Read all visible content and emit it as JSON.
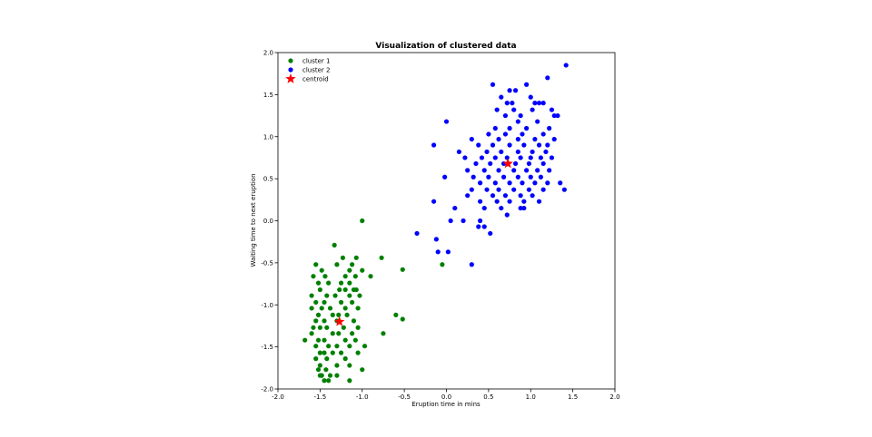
{
  "chart_data": {
    "type": "scatter",
    "title": "Visualization of clustered data",
    "xlabel": "Eruption time in mins",
    "ylabel": "Waiting time to next eruption",
    "xlim": [
      -2.0,
      2.0
    ],
    "ylim": [
      -2.0,
      2.0
    ],
    "xticks": [
      "-2.0",
      "-1.5",
      "-1.0",
      "-0.5",
      "0.0",
      "0.5",
      "1.0",
      "1.5",
      "2.0"
    ],
    "yticks": [
      "-2.0",
      "-1.5",
      "-1.0",
      "-0.5",
      "0.0",
      "0.5",
      "1.0",
      "1.5",
      "2.0"
    ],
    "grid": false,
    "legend_position": "top-left",
    "series": [
      {
        "name": "cluster 1",
        "color": "#008000",
        "marker": "circle",
        "points": [
          [
            -1.0,
            0.0
          ],
          [
            -1.33,
            -0.29
          ],
          [
            -1.07,
            -0.44
          ],
          [
            -1.23,
            -0.44
          ],
          [
            -0.77,
            -0.44
          ],
          [
            -1.55,
            -0.52
          ],
          [
            -1.12,
            -0.52
          ],
          [
            -1.3,
            -0.52
          ],
          [
            -0.52,
            -0.58
          ],
          [
            -1.15,
            -0.59
          ],
          [
            -1.0,
            -0.59
          ],
          [
            -1.48,
            -0.59
          ],
          [
            -0.9,
            -0.66
          ],
          [
            -1.58,
            -0.66
          ],
          [
            -1.08,
            -0.66
          ],
          [
            -1.44,
            -0.66
          ],
          [
            -1.2,
            -0.66
          ],
          [
            -1.25,
            -0.74
          ],
          [
            -1.15,
            -0.74
          ],
          [
            -1.52,
            -0.74
          ],
          [
            -1.4,
            -0.74
          ],
          [
            -1.07,
            -0.82
          ],
          [
            -1.2,
            -0.82
          ],
          [
            -1.5,
            -0.82
          ],
          [
            -1.27,
            -0.82
          ],
          [
            -1.1,
            -0.82
          ],
          [
            -1.6,
            -0.89
          ],
          [
            -1.42,
            -0.89
          ],
          [
            -1.15,
            -0.89
          ],
          [
            -1.32,
            -0.89
          ],
          [
            -1.03,
            -0.89
          ],
          [
            -1.55,
            -0.97
          ],
          [
            -1.25,
            -0.97
          ],
          [
            -1.45,
            -0.97
          ],
          [
            -1.12,
            -0.97
          ],
          [
            -1.38,
            -1.04
          ],
          [
            -1.6,
            -1.04
          ],
          [
            -1.2,
            -1.04
          ],
          [
            -1.48,
            -1.04
          ],
          [
            -1.05,
            -1.04
          ],
          [
            -1.28,
            -1.12
          ],
          [
            -1.52,
            -1.12
          ],
          [
            -1.35,
            -1.12
          ],
          [
            -1.18,
            -1.12
          ],
          [
            -0.6,
            -1.12
          ],
          [
            -1.45,
            -1.19
          ],
          [
            -1.1,
            -1.19
          ],
          [
            -1.3,
            -1.19
          ],
          [
            -1.55,
            -1.19
          ],
          [
            -0.52,
            -1.17
          ],
          [
            -1.58,
            -1.27
          ],
          [
            -1.42,
            -1.27
          ],
          [
            -1.22,
            -1.27
          ],
          [
            -1.05,
            -1.27
          ],
          [
            -1.5,
            -1.27
          ],
          [
            -1.35,
            -1.34
          ],
          [
            -1.12,
            -1.34
          ],
          [
            -1.6,
            -1.34
          ],
          [
            -1.28,
            -1.34
          ],
          [
            -0.75,
            -1.34
          ],
          [
            -1.68,
            -1.42
          ],
          [
            -1.45,
            -1.42
          ],
          [
            -1.2,
            -1.42
          ],
          [
            -1.52,
            -1.42
          ],
          [
            -1.08,
            -1.42
          ],
          [
            -1.3,
            -1.49
          ],
          [
            -1.55,
            -1.49
          ],
          [
            -0.97,
            -1.49
          ],
          [
            -1.4,
            -1.49
          ],
          [
            -1.15,
            -1.49
          ],
          [
            -1.5,
            -1.57
          ],
          [
            -1.25,
            -1.57
          ],
          [
            -1.35,
            -1.57
          ],
          [
            -1.05,
            -1.57
          ],
          [
            -1.45,
            -1.57
          ],
          [
            -1.55,
            -1.64
          ],
          [
            -1.2,
            -1.64
          ],
          [
            -1.42,
            -1.64
          ],
          [
            -1.5,
            -1.72
          ],
          [
            -1.3,
            -1.72
          ],
          [
            -1.15,
            -1.72
          ],
          [
            -1.0,
            -1.77
          ],
          [
            -1.52,
            -1.77
          ],
          [
            -1.43,
            -1.77
          ],
          [
            -1.48,
            -1.84
          ],
          [
            -1.38,
            -1.84
          ],
          [
            -1.3,
            -1.84
          ],
          [
            -1.5,
            -1.84
          ],
          [
            -1.4,
            -1.9
          ],
          [
            -1.15,
            -1.9
          ],
          [
            -1.45,
            -1.9
          ],
          [
            -0.05,
            -0.52
          ]
        ]
      },
      {
        "name": "cluster 2",
        "color": "#0000ff",
        "marker": "circle",
        "points": [
          [
            1.42,
            1.85
          ],
          [
            1.2,
            1.7
          ],
          [
            0.55,
            1.62
          ],
          [
            0.95,
            1.62
          ],
          [
            0.82,
            1.55
          ],
          [
            0.65,
            1.47
          ],
          [
            1.0,
            1.47
          ],
          [
            0.75,
            1.55
          ],
          [
            1.05,
            1.4
          ],
          [
            0.78,
            1.4
          ],
          [
            1.1,
            1.4
          ],
          [
            1.15,
            1.4
          ],
          [
            0.72,
            1.4
          ],
          [
            0.8,
            1.32
          ],
          [
            1.02,
            1.32
          ],
          [
            1.25,
            1.32
          ],
          [
            0.6,
            1.32
          ],
          [
            1.32,
            1.25
          ],
          [
            1.28,
            1.25
          ],
          [
            0.88,
            1.25
          ],
          [
            0.7,
            1.25
          ],
          [
            0.0,
            1.18
          ],
          [
            0.85,
            1.18
          ],
          [
            1.08,
            1.18
          ],
          [
            0.58,
            1.1
          ],
          [
            1.22,
            1.1
          ],
          [
            0.75,
            1.1
          ],
          [
            0.95,
            1.1
          ],
          [
            0.5,
            1.03
          ],
          [
            0.9,
            1.03
          ],
          [
            1.15,
            1.03
          ],
          [
            0.7,
            1.03
          ],
          [
            0.3,
            0.97
          ],
          [
            0.62,
            0.97
          ],
          [
            1.05,
            0.97
          ],
          [
            0.85,
            0.97
          ],
          [
            1.28,
            0.97
          ],
          [
            0.38,
            0.9
          ],
          [
            0.55,
            0.9
          ],
          [
            0.75,
            0.9
          ],
          [
            0.92,
            0.9
          ],
          [
            1.1,
            0.9
          ],
          [
            1.2,
            0.9
          ],
          [
            -0.15,
            0.9
          ],
          [
            0.48,
            0.82
          ],
          [
            0.65,
            0.82
          ],
          [
            0.85,
            0.82
          ],
          [
            1.02,
            0.82
          ],
          [
            1.18,
            0.82
          ],
          [
            0.15,
            0.82
          ],
          [
            0.22,
            0.75
          ],
          [
            0.42,
            0.75
          ],
          [
            0.58,
            0.75
          ],
          [
            0.72,
            0.75
          ],
          [
            0.88,
            0.75
          ],
          [
            1.0,
            0.75
          ],
          [
            1.12,
            0.75
          ],
          [
            1.25,
            0.75
          ],
          [
            0.35,
            0.68
          ],
          [
            0.52,
            0.68
          ],
          [
            0.68,
            0.68
          ],
          [
            0.82,
            0.68
          ],
          [
            0.98,
            0.68
          ],
          [
            1.15,
            0.68
          ],
          [
            0.25,
            0.6
          ],
          [
            0.45,
            0.6
          ],
          [
            0.62,
            0.6
          ],
          [
            0.8,
            0.6
          ],
          [
            0.95,
            0.6
          ],
          [
            1.08,
            0.6
          ],
          [
            1.22,
            0.6
          ],
          [
            -0.02,
            0.52
          ],
          [
            0.32,
            0.52
          ],
          [
            0.5,
            0.52
          ],
          [
            0.68,
            0.52
          ],
          [
            0.85,
            0.52
          ],
          [
            1.0,
            0.52
          ],
          [
            1.12,
            0.52
          ],
          [
            1.35,
            0.45
          ],
          [
            0.4,
            0.45
          ],
          [
            0.58,
            0.45
          ],
          [
            0.75,
            0.45
          ],
          [
            0.9,
            0.45
          ],
          [
            1.05,
            0.45
          ],
          [
            1.2,
            0.45
          ],
          [
            0.3,
            0.37
          ],
          [
            0.48,
            0.37
          ],
          [
            0.62,
            0.37
          ],
          [
            0.8,
            0.37
          ],
          [
            0.98,
            0.37
          ],
          [
            1.15,
            0.37
          ],
          [
            1.4,
            0.37
          ],
          [
            0.25,
            0.3
          ],
          [
            0.55,
            0.3
          ],
          [
            0.7,
            0.3
          ],
          [
            0.88,
            0.3
          ],
          [
            1.02,
            0.3
          ],
          [
            -0.15,
            0.23
          ],
          [
            0.4,
            0.23
          ],
          [
            0.6,
            0.23
          ],
          [
            0.75,
            0.23
          ],
          [
            0.92,
            0.23
          ],
          [
            1.1,
            0.23
          ],
          [
            0.1,
            0.15
          ],
          [
            0.45,
            0.15
          ],
          [
            0.65,
            0.15
          ],
          [
            0.88,
            0.15
          ],
          [
            0.92,
            0.15
          ],
          [
            0.72,
            0.07
          ],
          [
            0.05,
            0.0
          ],
          [
            0.2,
            0.0
          ],
          [
            0.4,
            0.0
          ],
          [
            0.45,
            -0.07
          ],
          [
            0.38,
            -0.07
          ],
          [
            0.52,
            -0.15
          ],
          [
            -0.35,
            -0.15
          ],
          [
            -0.12,
            -0.22
          ],
          [
            -0.1,
            -0.37
          ],
          [
            0.02,
            -0.37
          ],
          [
            0.3,
            -0.52
          ]
        ]
      }
    ],
    "centroid": {
      "name": "centroid",
      "color": "#ff0000",
      "marker": "star",
      "points": [
        [
          0.73,
          0.68
        ],
        [
          -1.27,
          -1.2
        ]
      ]
    }
  }
}
